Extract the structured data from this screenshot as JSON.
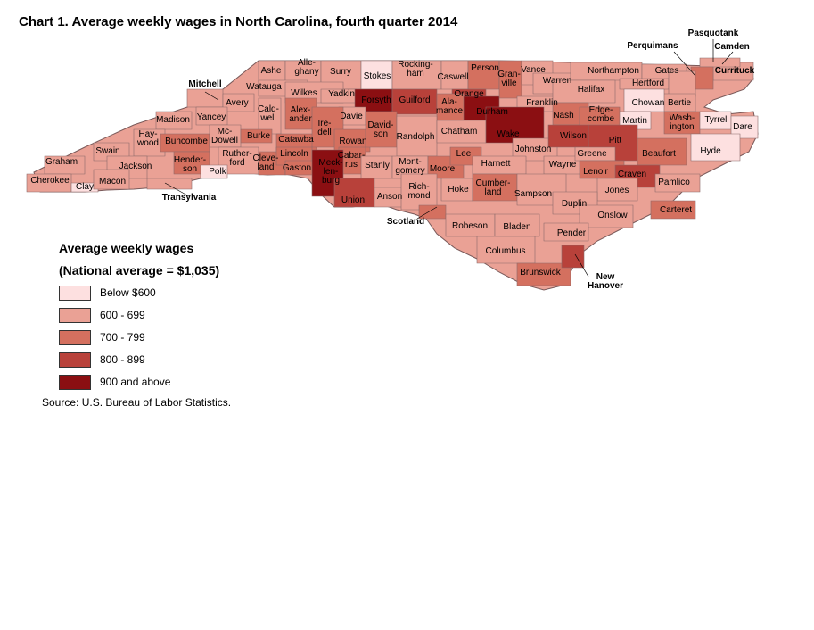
{
  "title": "Chart 1. Average weekly wages in North Carolina, fourth quarter 2014",
  "legend": {
    "title": "Average weekly wages",
    "subtitle": "(National average = $1,035)",
    "items": [
      {
        "label": "Below $600",
        "color": "#fde0e0"
      },
      {
        "label": "600 - 699",
        "color": "#eaa195"
      },
      {
        "label": "700 - 799",
        "color": "#d4705f"
      },
      {
        "label": "800 - 899",
        "color": "#b8413a"
      },
      {
        "label": "900 and above",
        "color": "#8b0f12"
      }
    ]
  },
  "source": "Source: U.S. Bureau of Labor Statistics.",
  "counties": [
    {
      "name": "Ashe",
      "bin": 1
    },
    {
      "name": "Alle-\nghany",
      "bin": 1
    },
    {
      "name": "Surry",
      "bin": 1
    },
    {
      "name": "Stokes",
      "bin": 0
    },
    {
      "name": "Rocking-\nham",
      "bin": 1
    },
    {
      "name": "Caswell",
      "bin": 1
    },
    {
      "name": "Person",
      "bin": 2
    },
    {
      "name": "Gran-\nville",
      "bin": 2
    },
    {
      "name": "Vance",
      "bin": 1
    },
    {
      "name": "Warren",
      "bin": 1
    },
    {
      "name": "Northampton",
      "bin": 1
    },
    {
      "name": "Gates",
      "bin": 1
    },
    {
      "name": "Hertford",
      "bin": 1
    },
    {
      "name": "Currituck",
      "bin": 1
    },
    {
      "name": "Camden",
      "bin": 1
    },
    {
      "name": "Pasquotank",
      "bin": 2
    },
    {
      "name": "Perquimans",
      "bin": 1
    },
    {
      "name": "Mitchell",
      "bin": 1
    },
    {
      "name": "Watauga",
      "bin": 1
    },
    {
      "name": "Wilkes",
      "bin": 1
    },
    {
      "name": "Yadkin",
      "bin": 1
    },
    {
      "name": "Forsyth",
      "bin": 4
    },
    {
      "name": "Guilford",
      "bin": 3
    },
    {
      "name": "Orange",
      "bin": 3
    },
    {
      "name": "Durham",
      "bin": 4
    },
    {
      "name": "Franklin",
      "bin": 1
    },
    {
      "name": "Halifax",
      "bin": 1
    },
    {
      "name": "Bertie",
      "bin": 1
    },
    {
      "name": "Chowan",
      "bin": 0
    },
    {
      "name": "Martin",
      "bin": 0
    },
    {
      "name": "Wash-\nington",
      "bin": 2
    },
    {
      "name": "Tyrrell",
      "bin": 0
    },
    {
      "name": "Dare",
      "bin": 0
    },
    {
      "name": "Hyde",
      "bin": 0
    },
    {
      "name": "Avery",
      "bin": 1
    },
    {
      "name": "Yancey",
      "bin": 1
    },
    {
      "name": "Madison",
      "bin": 1
    },
    {
      "name": "Cald-\nwell",
      "bin": 1
    },
    {
      "name": "Alex-\nander",
      "bin": 2
    },
    {
      "name": "Davie",
      "bin": 1
    },
    {
      "name": "Ala-\nmance",
      "bin": 2
    },
    {
      "name": "Nash",
      "bin": 2
    },
    {
      "name": "Edge-\ncombe",
      "bin": 2
    },
    {
      "name": "Hay-\nwood",
      "bin": 1
    },
    {
      "name": "Buncombe",
      "bin": 2
    },
    {
      "name": "Mc-\nDowell",
      "bin": 1
    },
    {
      "name": "Burke",
      "bin": 2
    },
    {
      "name": "Catawba",
      "bin": 2
    },
    {
      "name": "Ire-\ndell",
      "bin": 2
    },
    {
      "name": "Rowan",
      "bin": 2
    },
    {
      "name": "David-\nson",
      "bin": 2
    },
    {
      "name": "Randolph",
      "bin": 1
    },
    {
      "name": "Chatham",
      "bin": 1
    },
    {
      "name": "Wake",
      "bin": 4
    },
    {
      "name": "Johnston",
      "bin": 1
    },
    {
      "name": "Wilson",
      "bin": 3
    },
    {
      "name": "Pitt",
      "bin": 3
    },
    {
      "name": "Beaufort",
      "bin": 2
    },
    {
      "name": "Swain",
      "bin": 1
    },
    {
      "name": "Graham",
      "bin": 1
    },
    {
      "name": "Jackson",
      "bin": 1
    },
    {
      "name": "Hender-\nson",
      "bin": 2
    },
    {
      "name": "Ruther-\nford",
      "bin": 1
    },
    {
      "name": "Polk",
      "bin": 0
    },
    {
      "name": "Cleve-\nland",
      "bin": 2
    },
    {
      "name": "Lincoln",
      "bin": 2
    },
    {
      "name": "Gaston",
      "bin": 2
    },
    {
      "name": "Cabar-\nrus",
      "bin": 2
    },
    {
      "name": "Stanly",
      "bin": 1
    },
    {
      "name": "Mont-\ngomery",
      "bin": 1
    },
    {
      "name": "Moore",
      "bin": 2
    },
    {
      "name": "Lee",
      "bin": 2
    },
    {
      "name": "Harnett",
      "bin": 1
    },
    {
      "name": "Wayne",
      "bin": 1
    },
    {
      "name": "Greene",
      "bin": 1
    },
    {
      "name": "Lenoir",
      "bin": 2
    },
    {
      "name": "Craven",
      "bin": 3
    },
    {
      "name": "Pamlico",
      "bin": 1
    },
    {
      "name": "Cherokee",
      "bin": 1
    },
    {
      "name": "Clay",
      "bin": 0
    },
    {
      "name": "Macon",
      "bin": 1
    },
    {
      "name": "Transylvania",
      "bin": 1
    },
    {
      "name": "Meck-\nlen-\nburg",
      "bin": 4
    },
    {
      "name": "Union",
      "bin": 3
    },
    {
      "name": "Anson",
      "bin": 1
    },
    {
      "name": "Rich-\nmond",
      "bin": 1
    },
    {
      "name": "Hoke",
      "bin": 1
    },
    {
      "name": "Cumber-\nland",
      "bin": 2
    },
    {
      "name": "Sampson",
      "bin": 1
    },
    {
      "name": "Jones",
      "bin": 1
    },
    {
      "name": "Duplin",
      "bin": 1
    },
    {
      "name": "Onslow",
      "bin": 1
    },
    {
      "name": "Carteret",
      "bin": 2
    },
    {
      "name": "Scotland",
      "bin": 2
    },
    {
      "name": "Robeson",
      "bin": 1
    },
    {
      "name": "Bladen",
      "bin": 1
    },
    {
      "name": "Pender",
      "bin": 1
    },
    {
      "name": "Columbus",
      "bin": 1
    },
    {
      "name": "Brunswick",
      "bin": 2
    },
    {
      "name": "New\nHanover",
      "bin": 3
    }
  ]
}
